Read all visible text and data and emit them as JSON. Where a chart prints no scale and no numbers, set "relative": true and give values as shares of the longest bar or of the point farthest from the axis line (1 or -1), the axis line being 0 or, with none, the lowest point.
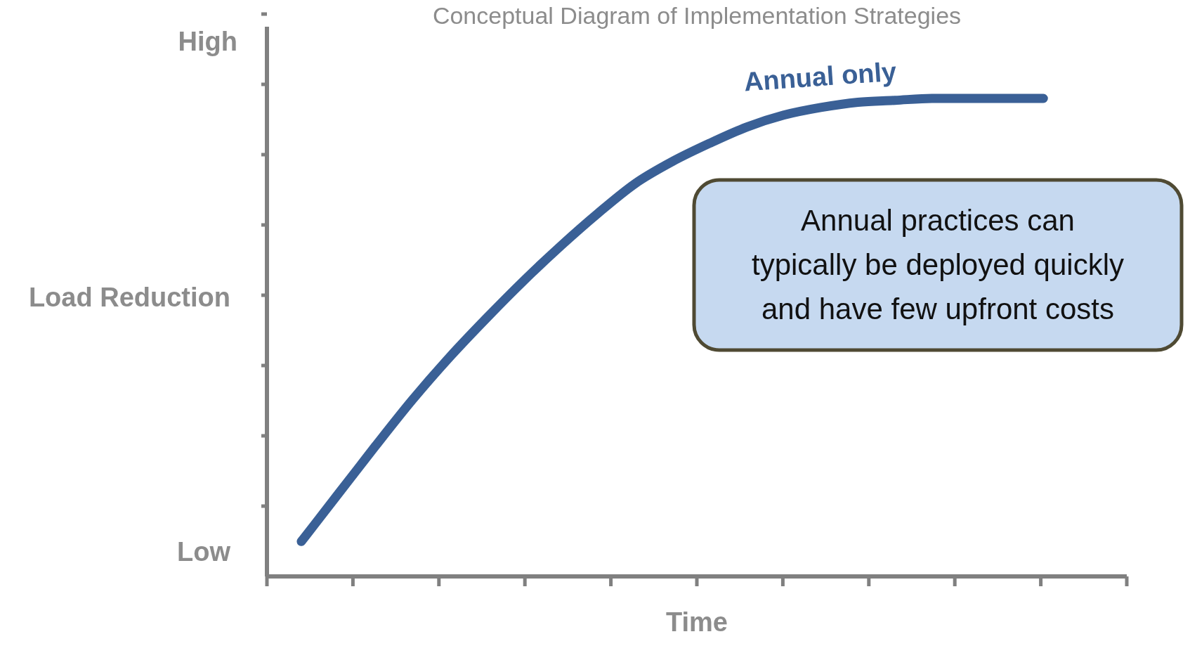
{
  "chart_data": {
    "type": "line",
    "title": "Conceptual Diagram of Implementation Strategies",
    "xlabel": "Time",
    "ylabel": "Load Reduction",
    "relative": true,
    "categories": [
      null,
      null,
      null,
      null,
      null,
      null,
      null,
      null,
      null,
      null,
      null,
      null,
      null,
      null,
      null,
      null,
      null,
      null,
      null,
      null,
      null
    ],
    "series": [
      {
        "name": "Annual only",
        "color": "#3a6096",
        "values": [
          0.073,
          0.173,
          0.273,
          0.37,
          0.459,
          0.541,
          0.619,
          0.692,
          0.76,
          0.822,
          0.868,
          0.906,
          0.94,
          0.965,
          0.981,
          0.992,
          0.996,
          1,
          1,
          1,
          1
        ]
      }
    ],
    "annotations": [
      "High",
      "Low",
      "Annual practices can typically be deployed quickly and have few upfront costs"
    ],
    "grid": false,
    "marker": "none",
    "line_style": "solid"
  }
}
